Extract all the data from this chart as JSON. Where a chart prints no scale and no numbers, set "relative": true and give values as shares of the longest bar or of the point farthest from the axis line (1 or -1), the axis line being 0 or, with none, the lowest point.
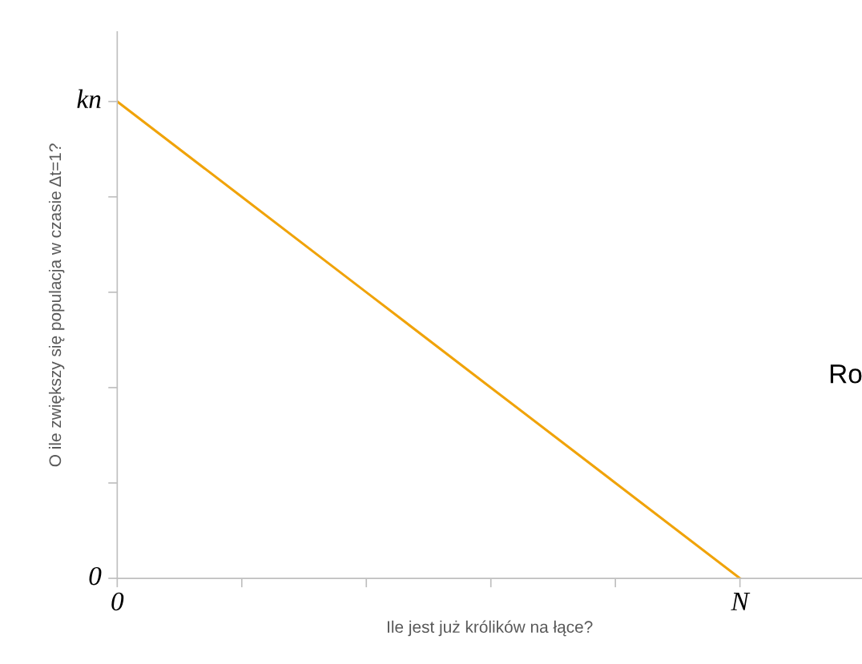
{
  "chart_data": {
    "type": "line",
    "xlabel": "Ile jest już królików na łące?",
    "ylabel": "O ile zwiększy się populacja w czasie Δt=1?",
    "relative": true,
    "categories": [
      "0",
      null,
      null,
      null,
      null,
      "N"
    ],
    "series": [
      {
        "color": "#f0a30a",
        "values": [
          1,
          0.8,
          0.6,
          0.4,
          0.2,
          0
        ]
      }
    ],
    "annotations": [
      "kn",
      "0",
      "Ro"
    ],
    "grid": false,
    "legend": false,
    "marker": "none",
    "line_style": "solid"
  }
}
